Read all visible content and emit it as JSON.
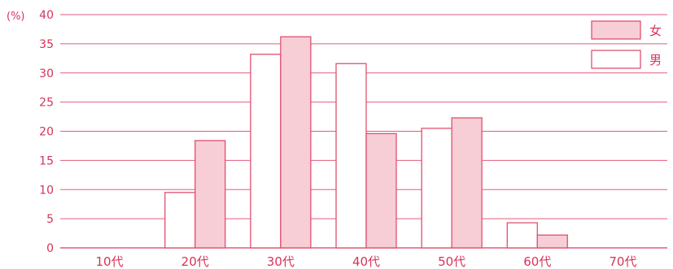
{
  "colors": {
    "axis": "#e25b7c",
    "text": "#d6335a",
    "female_fill": "#f7cdd6",
    "male_fill": "#ffffff",
    "bar_stroke": "#e0506f"
  },
  "chart_data": {
    "type": "bar",
    "title": "",
    "xlabel": "",
    "ylabel": "",
    "unit_label": "(%)",
    "categories": [
      "10代",
      "20代",
      "30代",
      "40代",
      "50代",
      "60代",
      "70代"
    ],
    "series": [
      {
        "name": "男",
        "values": [
          0,
          9.5,
          33.2,
          31.6,
          20.5,
          4.3,
          0
        ]
      },
      {
        "name": "女",
        "values": [
          0,
          18.4,
          36.2,
          19.6,
          22.3,
          2.2,
          0
        ]
      }
    ],
    "ylim": [
      0,
      40
    ],
    "yticks": [
      "0",
      "5",
      "10",
      "15",
      "20",
      "25",
      "30",
      "35",
      "40"
    ],
    "grid": true,
    "legend": {
      "placement": "top-right",
      "order": [
        "女",
        "男"
      ]
    }
  }
}
